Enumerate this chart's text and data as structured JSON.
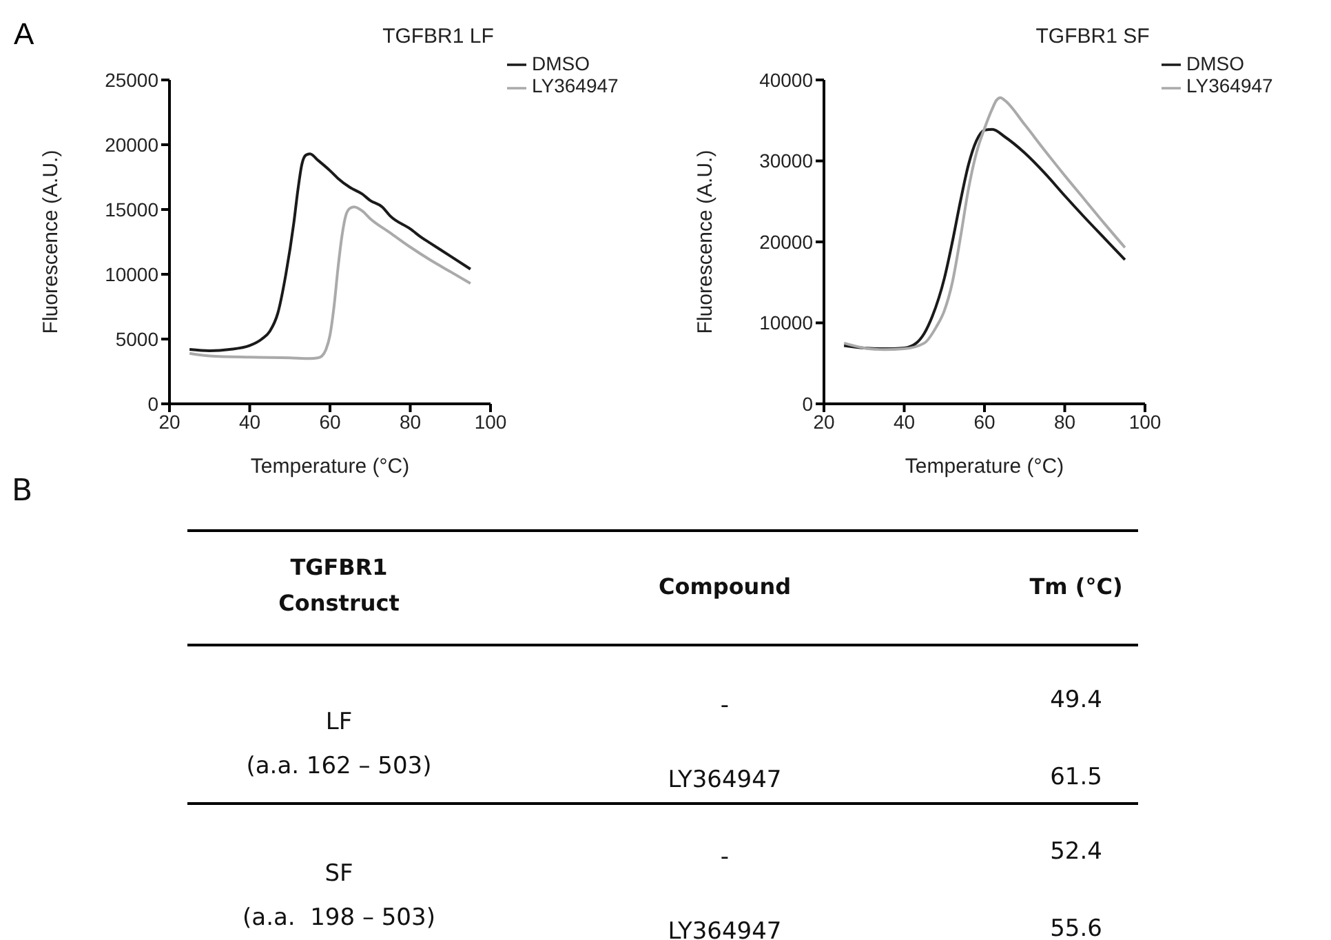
{
  "chart_data": [
    {
      "type": "line",
      "title": "TGFBR1 LF",
      "xlabel": "Temperature (°C)",
      "ylabel": "Fluorescence (A.U.)",
      "annotations": [
        "A"
      ],
      "xlim": [
        20,
        100
      ],
      "xticks": [
        20,
        40,
        60,
        80,
        100
      ],
      "ylim": [
        0,
        25000
      ],
      "yticks": [
        0,
        5000,
        10000,
        15000,
        20000,
        25000
      ],
      "grid": false,
      "legend": "top right",
      "marker": "none",
      "line_style": "solid",
      "series": [
        {
          "name": "DMSO",
          "color": "#1a1a1a",
          "x": [
            25,
            30,
            35,
            40,
            43,
            45,
            47,
            49,
            51,
            52,
            53,
            54,
            55,
            57,
            60,
            62,
            65,
            68,
            70,
            73,
            75,
            80,
            83,
            85,
            90,
            95
          ],
          "values": [
            4200,
            4100,
            4200,
            4500,
            5000,
            5600,
            7000,
            10000,
            14000,
            16500,
            18500,
            19200,
            19300,
            18800,
            18000,
            17400,
            16700,
            16200,
            15700,
            15200,
            14500,
            13500,
            12800,
            12400,
            11400,
            10400
          ]
        },
        {
          "name": "LY364947",
          "color": "#aaaaaa",
          "x": [
            25,
            30,
            40,
            50,
            55,
            57,
            58,
            59,
            60,
            61,
            62,
            63,
            64,
            65,
            66,
            68,
            70,
            75,
            80,
            85,
            90,
            95
          ],
          "values": [
            3900,
            3700,
            3600,
            3550,
            3500,
            3550,
            3700,
            4200,
            5300,
            7500,
            10500,
            13000,
            14600,
            15100,
            15200,
            14900,
            14300,
            13200,
            12100,
            11100,
            10200,
            9300
          ]
        }
      ]
    },
    {
      "type": "line",
      "title": "TGFBR1 SF",
      "xlabel": "Temperature (°C)",
      "ylabel": "Fluorescence (A.U.)",
      "xlim": [
        20,
        100
      ],
      "xticks": [
        20,
        40,
        60,
        80,
        100
      ],
      "ylim": [
        0,
        40000
      ],
      "yticks": [
        0,
        10000,
        20000,
        30000,
        40000
      ],
      "grid": false,
      "legend": "top right",
      "marker": "none",
      "line_style": "solid",
      "series": [
        {
          "name": "DMSO",
          "color": "#1a1a1a",
          "x": [
            25,
            30,
            35,
            40,
            43,
            45,
            47,
            50,
            52,
            54,
            56,
            58,
            60,
            62,
            65,
            70,
            75,
            80,
            85,
            90,
            95
          ],
          "values": [
            7200,
            6900,
            6800,
            6900,
            7500,
            8700,
            10800,
            15500,
            20000,
            25000,
            29500,
            32500,
            33800,
            33900,
            33000,
            31000,
            28500,
            25700,
            23000,
            20400,
            17800
          ]
        },
        {
          "name": "LY364947",
          "color": "#aaaaaa",
          "x": [
            25,
            30,
            35,
            40,
            45,
            48,
            50,
            52,
            54,
            56,
            58,
            60,
            62,
            63,
            64,
            65,
            70,
            75,
            80,
            85,
            90,
            95
          ],
          "values": [
            7500,
            6900,
            6700,
            6800,
            7500,
            9500,
            11500,
            15000,
            20500,
            26500,
            31000,
            34000,
            36500,
            37500,
            37800,
            37500,
            34500,
            31300,
            28200,
            25200,
            22200,
            19300
          ]
        }
      ]
    },
    {
      "type": "other",
      "annotations": [
        "B",
        "TGFBR1",
        "Construct",
        "Compound",
        "Tm (°C)",
        "LF",
        "(a.a. 162 – 503)",
        "-",
        "49.4",
        "LY364947",
        "61.5",
        "SF",
        "(a.a.  198 – 503)",
        "-",
        "52.4",
        "LY364947",
        "55.6"
      ]
    }
  ]
}
